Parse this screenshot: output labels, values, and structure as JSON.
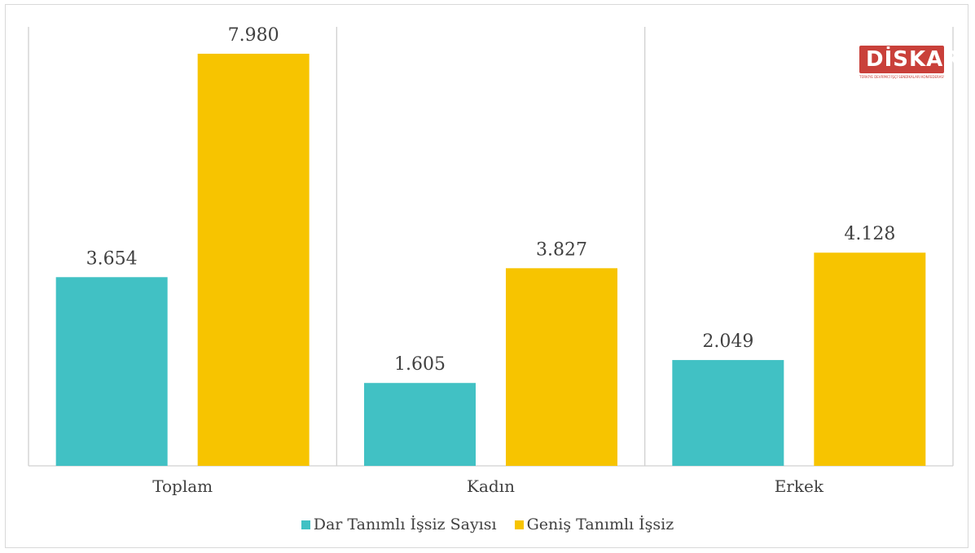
{
  "chart_data": {
    "type": "bar",
    "categories": [
      "Toplam",
      "Kadın",
      "Erkek"
    ],
    "series": [
      {
        "name": "Dar Tanımlı İşsiz Sayısı",
        "values": [
          3654,
          1605,
          2049
        ],
        "labels": [
          "3.654",
          "1.605",
          "2.049"
        ],
        "color": "#41c1c4"
      },
      {
        "name": "Geniş Tanımlı İşsiz",
        "values": [
          7980,
          3827,
          4128
        ],
        "labels": [
          "7.980",
          "3.827",
          "4.128"
        ],
        "color": "#f7c400"
      }
    ],
    "ylim": [
      0,
      8500
    ],
    "grid": false,
    "legend_position": "bottom"
  },
  "logo": {
    "text": "DİSKAR",
    "subtitle": "TÜRKİYE DEVRİMCİ İŞÇİ SENDİKALARI KONFEDERASYONU ARAŞTIRMA MERKEZİ"
  }
}
